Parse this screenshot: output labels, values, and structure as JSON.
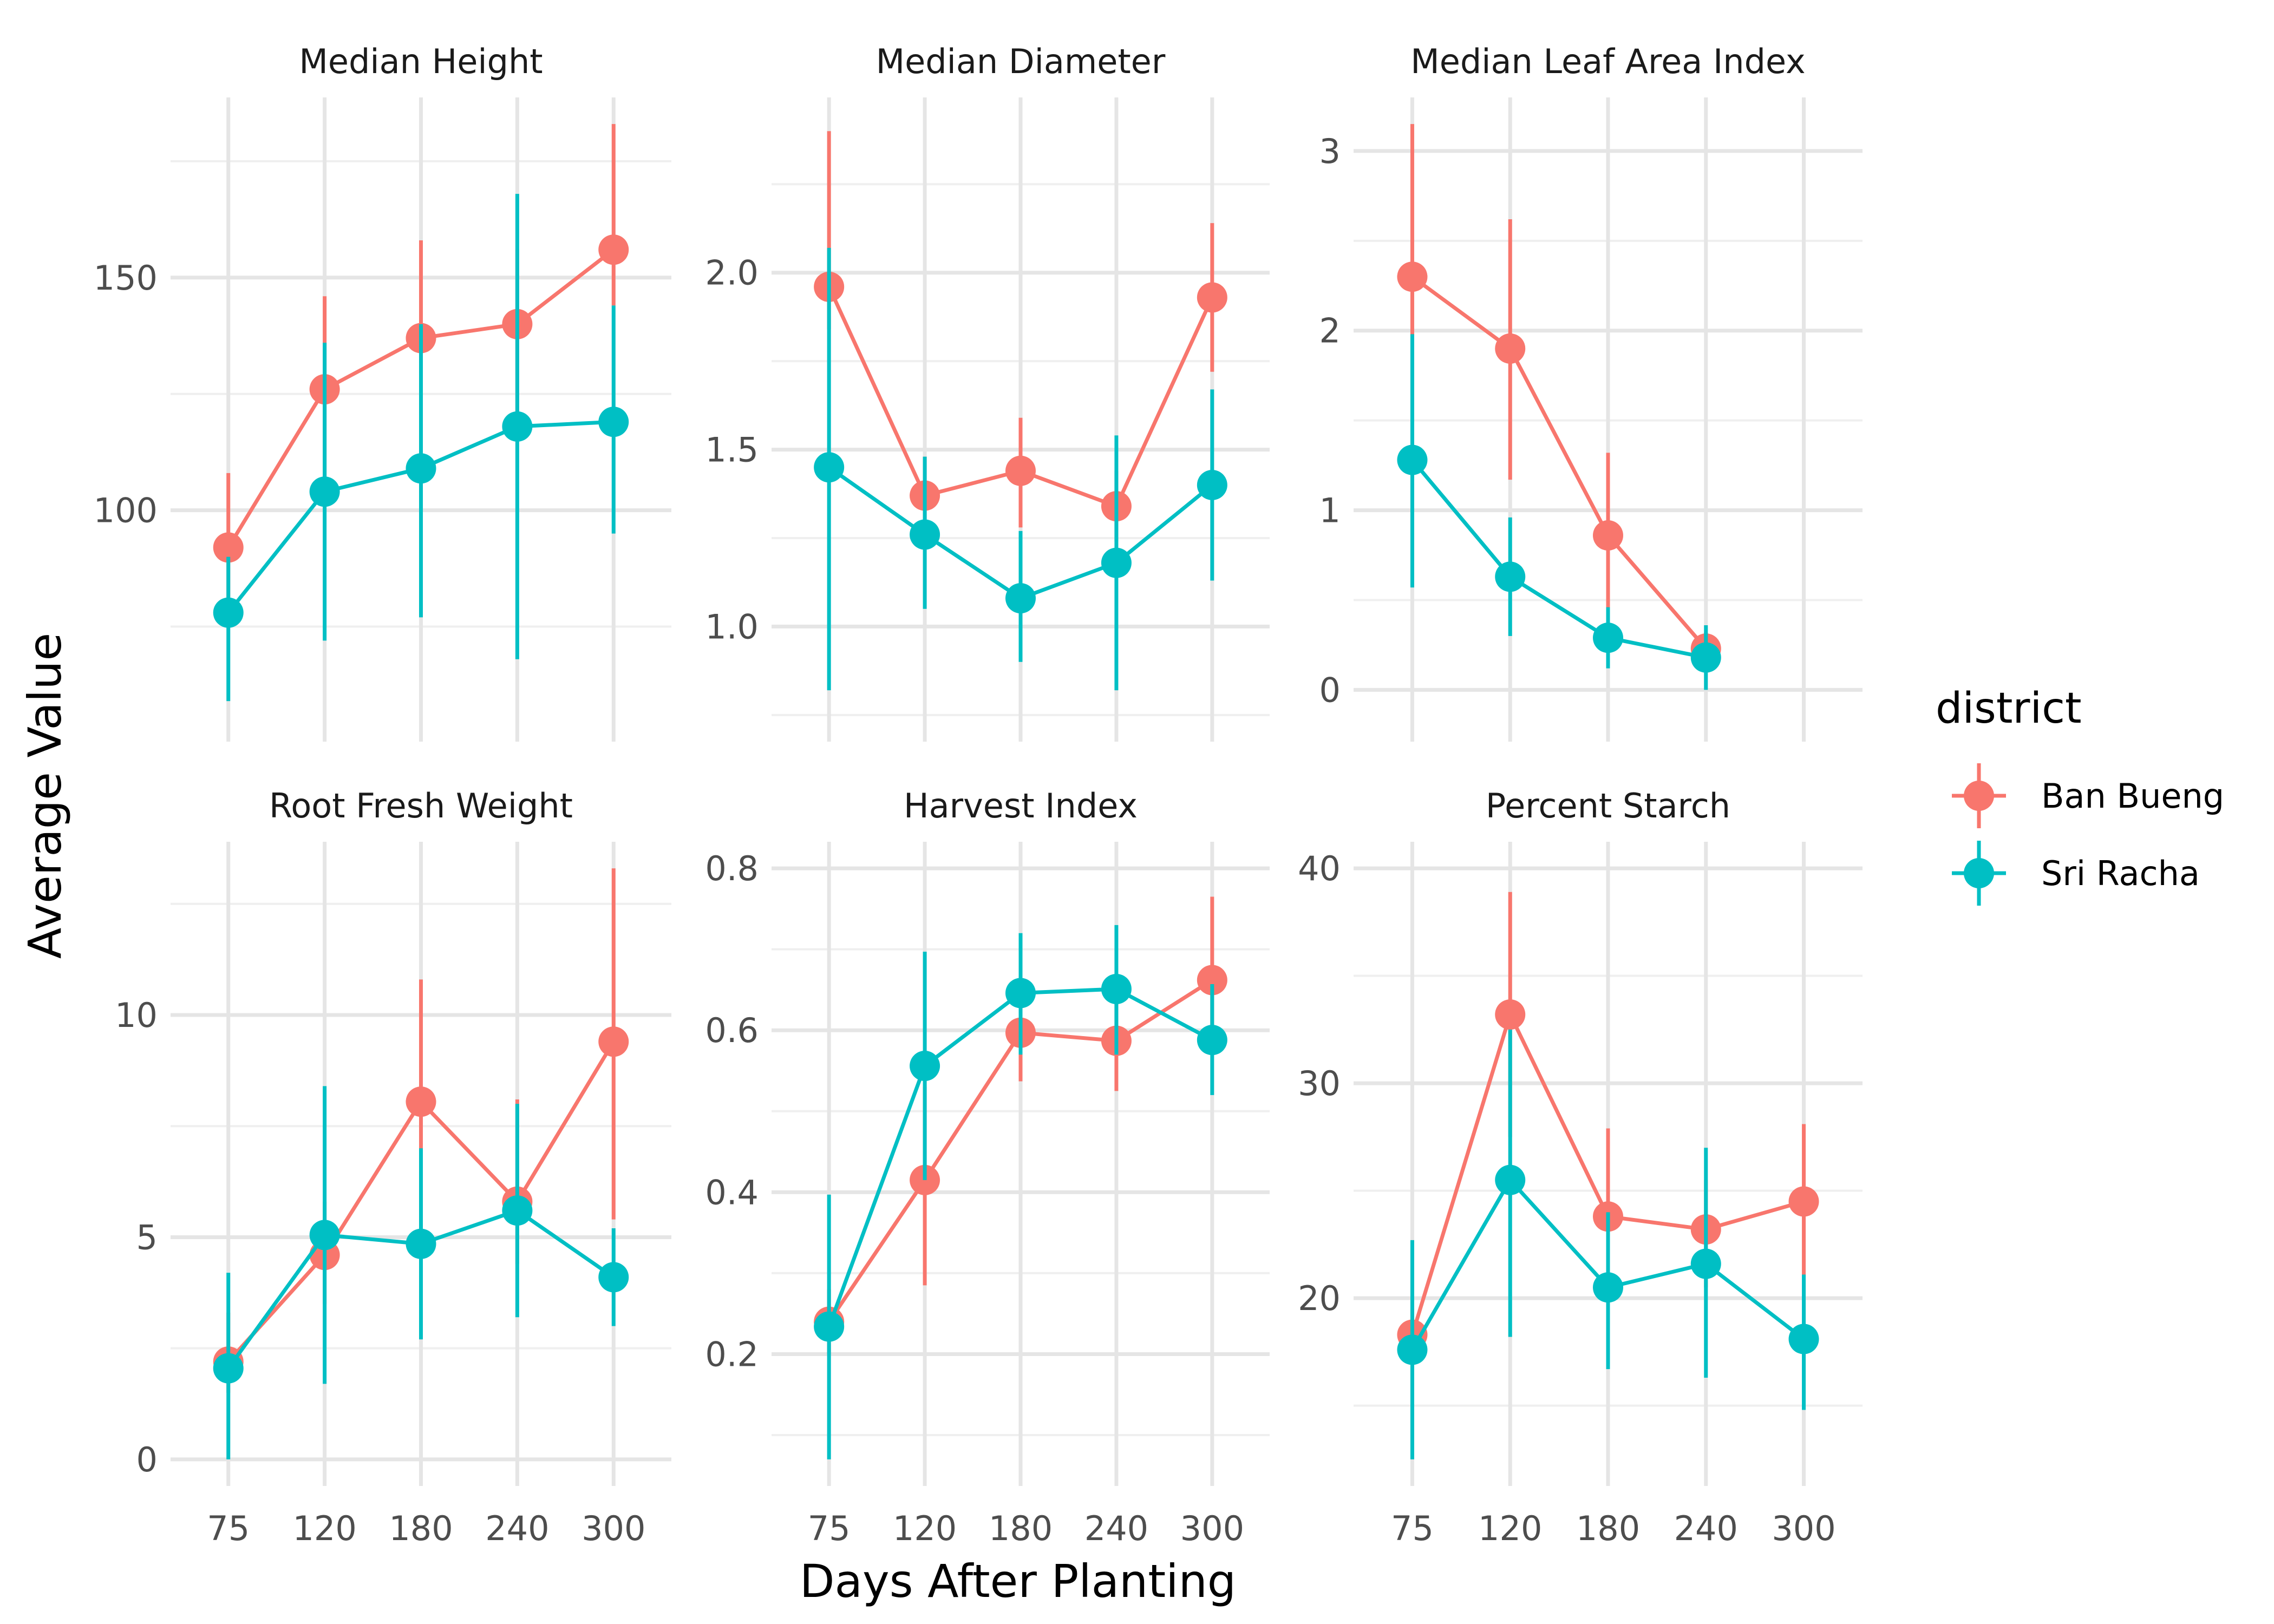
{
  "chart_data": {
    "type": "line",
    "xlabel": "Days After Planting",
    "ylabel": "Average Value",
    "x": [
      "75",
      "120",
      "180",
      "240",
      "300"
    ],
    "legend": {
      "title": "district",
      "placement": "right",
      "entries": [
        {
          "name": "Ban Bueng",
          "color": "#F8766D"
        },
        {
          "name": "Sri Racha",
          "color": "#00BFC4"
        }
      ]
    },
    "grid": true,
    "panels": [
      {
        "title": "Median Height",
        "ylim": [
          56,
          183
        ],
        "yticks": [
          100,
          150
        ],
        "yticks_minor": [
          75,
          125,
          175
        ],
        "series": [
          {
            "name": "Ban Bueng",
            "values": [
              92,
              126,
              137,
              140,
              156
            ],
            "lower": [
              76,
              106,
              116,
              118,
              144
            ],
            "upper": [
              108,
              146,
              158,
              156,
              183
            ]
          },
          {
            "name": "Sri Racha",
            "values": [
              78,
              104,
              109,
              118,
              119
            ],
            "lower": [
              59,
              72,
              77,
              68,
              95
            ],
            "upper": [
              90,
              136,
              140,
              168,
              144
            ]
          }
        ]
      },
      {
        "title": "Median Diameter",
        "ylim": [
          0.75,
          2.42
        ],
        "yticks": [
          1.0,
          1.5,
          2.0
        ],
        "yticks_minor": [
          0.75,
          1.25,
          1.75,
          2.25
        ],
        "series": [
          {
            "name": "Ban Bueng",
            "values": [
              1.96,
              1.37,
              1.44,
              1.34,
              1.93
            ],
            "lower": [
              1.84,
              1.27,
              1.28,
              1.24,
              1.72
            ],
            "upper": [
              2.4,
              1.48,
              1.59,
              1.44,
              2.14
            ]
          },
          {
            "name": "Sri Racha",
            "values": [
              1.45,
              1.26,
              1.08,
              1.18,
              1.4
            ],
            "lower": [
              0.82,
              1.05,
              0.9,
              0.82,
              1.13
            ],
            "upper": [
              2.07,
              1.48,
              1.27,
              1.54,
              1.67
            ]
          }
        ]
      },
      {
        "title": "Median Leaf Area Index",
        "ylim": [
          -0.14,
          3.15
        ],
        "yticks": [
          0,
          1,
          2,
          3
        ],
        "yticks_minor": [
          0.5,
          1.5,
          2.5
        ],
        "series": [
          {
            "name": "Ban Bueng",
            "values": [
              2.3,
              1.9,
              0.86,
              0.23
            ],
            "lower": [
              1.97,
              1.17,
              0.4,
              0.14
            ],
            "upper": [
              3.15,
              2.62,
              1.32,
              0.32
            ]
          },
          {
            "name": "Sri Racha",
            "values": [
              1.28,
              0.63,
              0.29,
              0.18
            ],
            "lower": [
              0.57,
              0.3,
              0.12,
              0.0
            ],
            "upper": [
              1.98,
              0.96,
              0.46,
              0.36
            ]
          }
        ]
      },
      {
        "title": "Root Fresh Weight",
        "ylim": [
          0,
          13.3
        ],
        "yticks": [
          0,
          5,
          10
        ],
        "yticks_minor": [
          2.5,
          7.5,
          12.5
        ],
        "series": [
          {
            "name": "Ban Bueng",
            "values": [
              2.2,
              4.6,
              8.05,
              5.8,
              9.4
            ],
            "lower": [
              1.5,
              3.5,
              5.6,
              4.4,
              5.4
            ],
            "upper": [
              3.3,
              5.8,
              10.8,
              8.1,
              13.3
            ]
          },
          {
            "name": "Sri Racha",
            "values": [
              2.05,
              5.05,
              4.85,
              5.6,
              4.1
            ],
            "lower": [
              0.0,
              1.7,
              2.7,
              3.2,
              3.0
            ],
            "upper": [
              4.2,
              8.4,
              7.0,
              8.0,
              5.2
            ]
          }
        ]
      },
      {
        "title": "Harvest Index",
        "ylim": [
          0.07,
          0.8
        ],
        "yticks": [
          0.2,
          0.4,
          0.6,
          0.8
        ],
        "yticks_minor": [
          0.1,
          0.3,
          0.5,
          0.7
        ],
        "series": [
          {
            "name": "Ban Bueng",
            "values": [
              0.24,
              0.415,
              0.597,
              0.587,
              0.662
            ],
            "lower": [
              0.2,
              0.285,
              0.537,
              0.525,
              0.6
            ],
            "upper": [
              0.28,
              0.53,
              0.655,
              0.648,
              0.765
            ]
          },
          {
            "name": "Sri Racha",
            "values": [
              0.234,
              0.556,
              0.646,
              0.651,
              0.588
            ],
            "lower": [
              0.07,
              0.415,
              0.57,
              0.57,
              0.52
            ],
            "upper": [
              0.397,
              0.697,
              0.72,
              0.73,
              0.657
            ]
          }
        ]
      },
      {
        "title": "Percent Starch",
        "ylim": [
          12.5,
          40
        ],
        "yticks": [
          20,
          30,
          40
        ],
        "yticks_minor": [
          15,
          25,
          35
        ],
        "series": [
          {
            "name": "Ban Bueng",
            "values": [
              18.3,
              33.2,
              23.8,
              23.2,
              24.5
            ],
            "lower": [
              17.0,
              27.5,
              20.0,
              20.5,
              21.0
            ],
            "upper": [
              19.5,
              38.9,
              27.9,
              25.5,
              28.1
            ]
          },
          {
            "name": "Sri Racha",
            "values": [
              17.6,
              25.5,
              20.5,
              21.6,
              18.1
            ],
            "lower": [
              12.5,
              18.2,
              16.7,
              16.3,
              14.8
            ],
            "upper": [
              22.7,
              32.5,
              24.0,
              27.0,
              21.1
            ]
          }
        ]
      }
    ]
  }
}
